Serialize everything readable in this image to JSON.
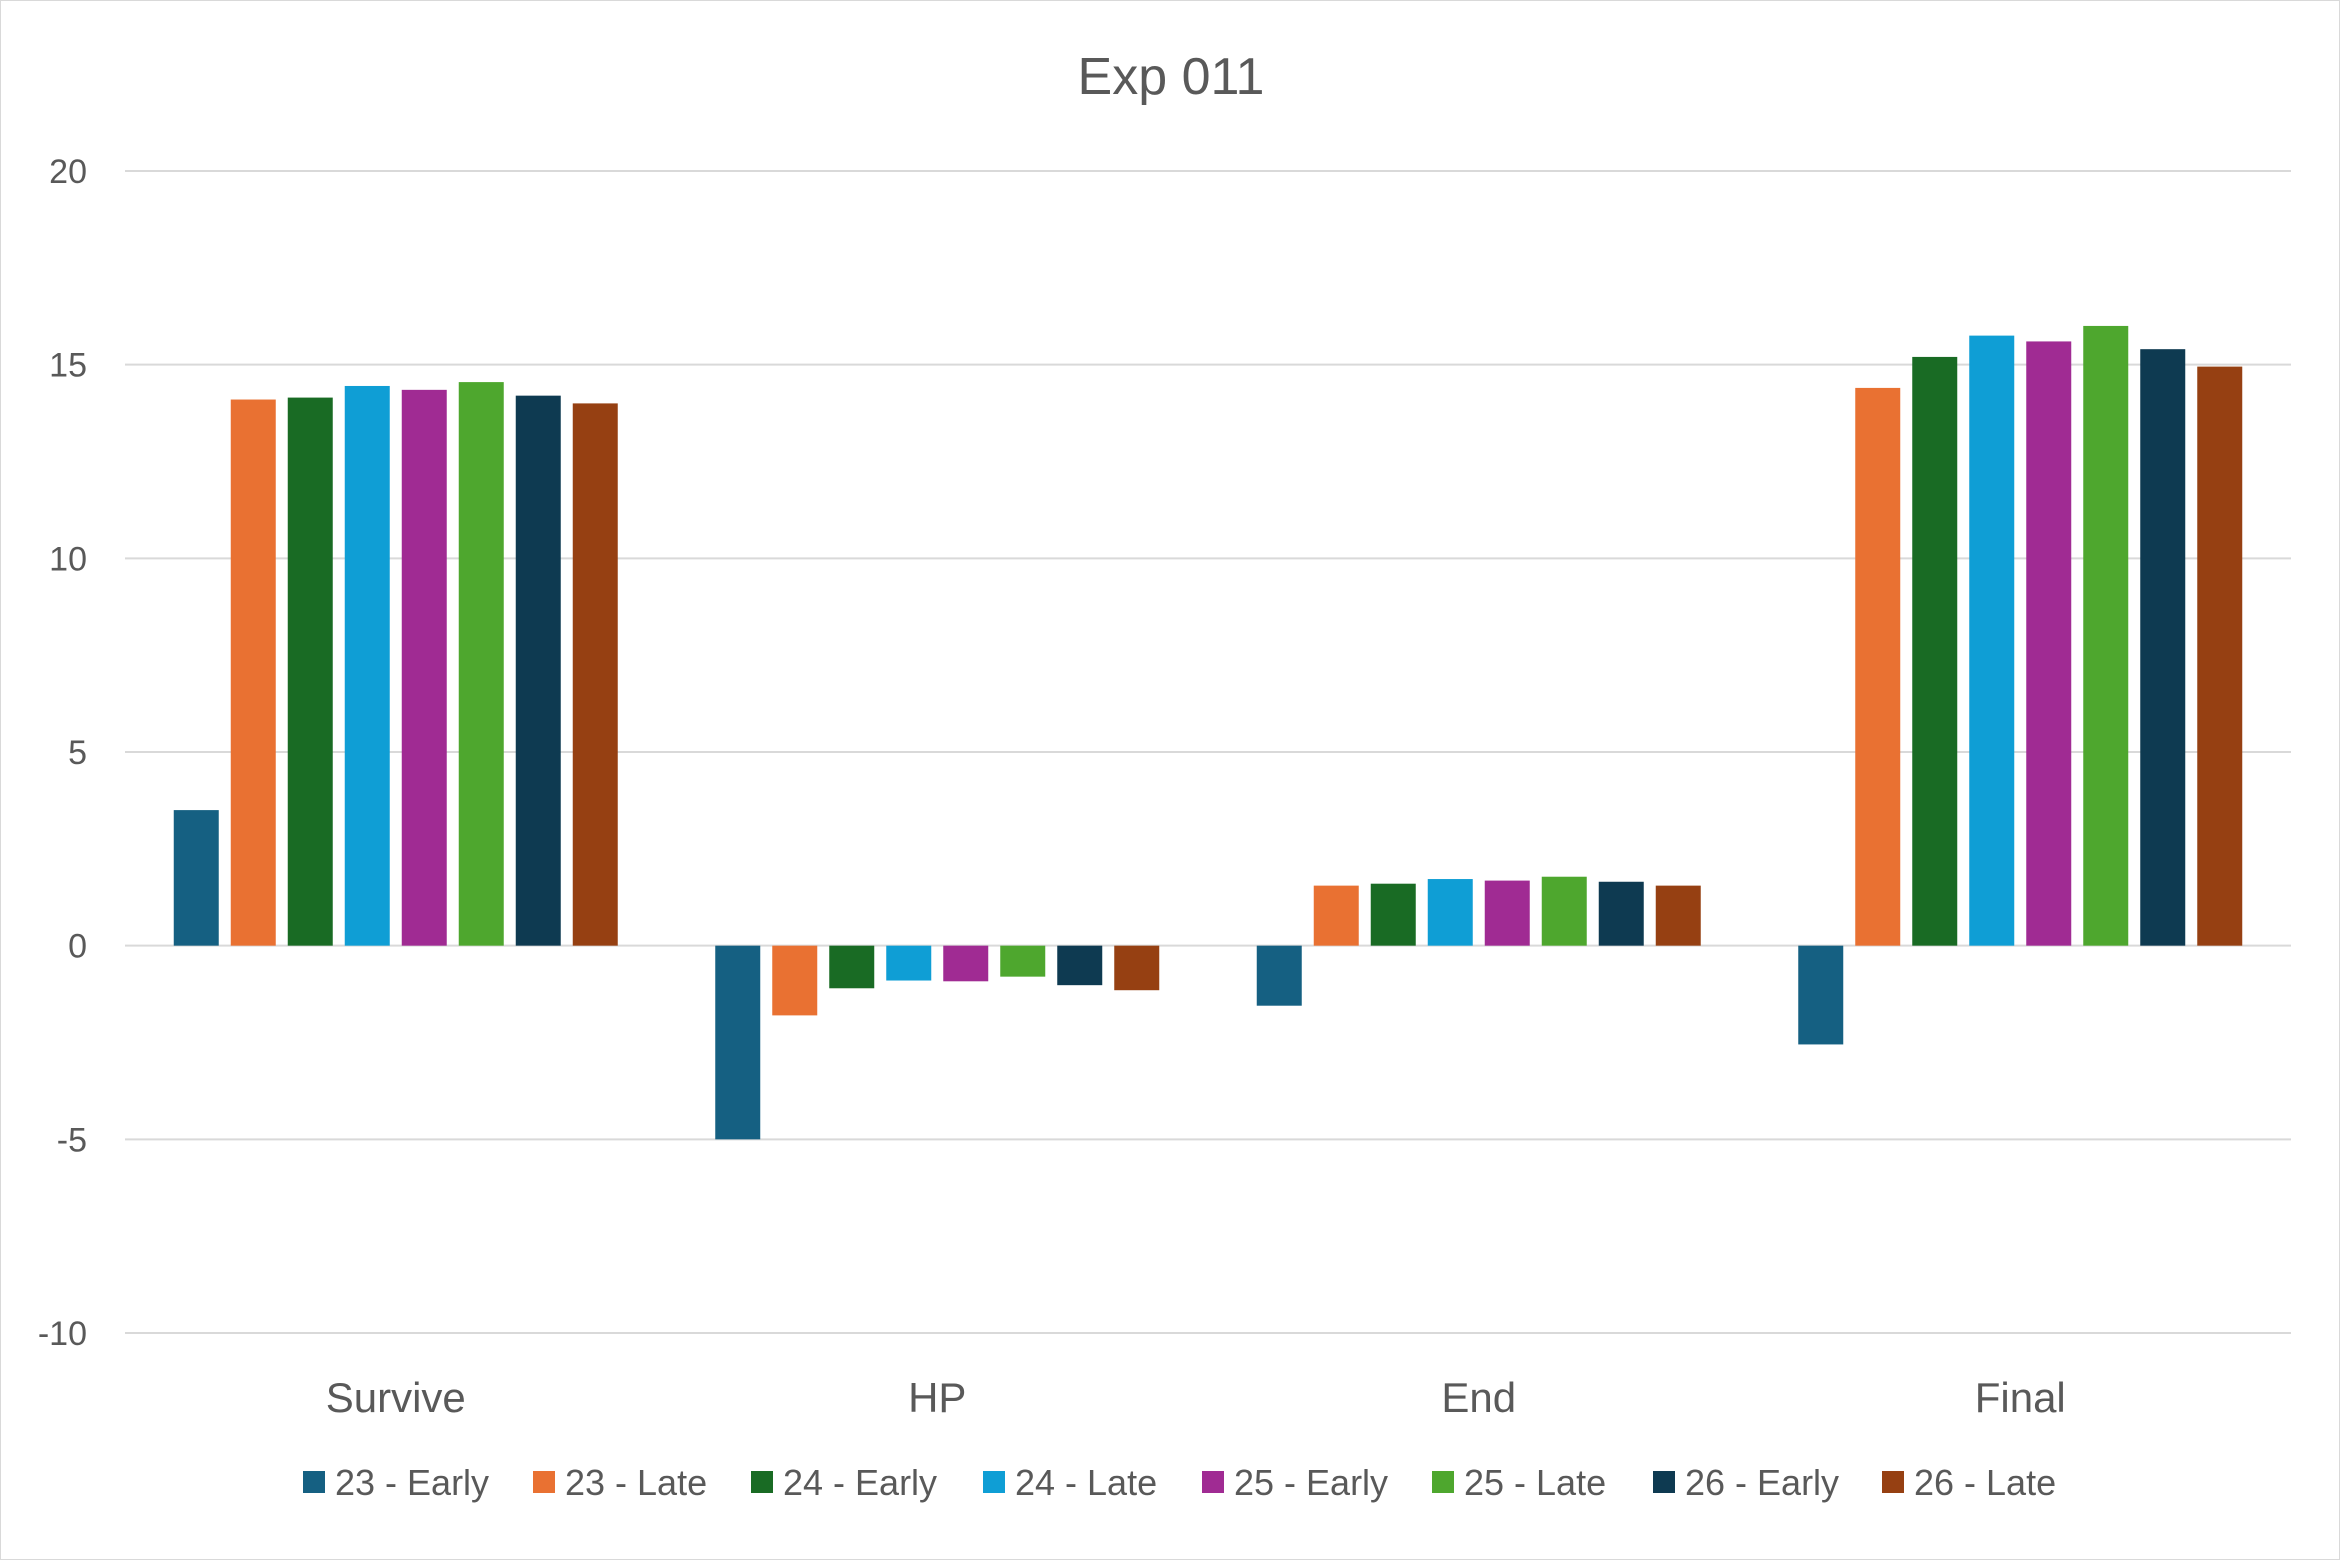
{
  "chart_data": {
    "type": "bar",
    "title": "Exp 011",
    "xlabel": "",
    "ylabel": "",
    "ylim": [
      -10,
      20
    ],
    "yticks": [
      20,
      15,
      10,
      5,
      0,
      -5,
      -10
    ],
    "ytick_labels": [
      "20",
      "15",
      "10",
      "5",
      "0",
      "-5",
      "-10"
    ],
    "grid": true,
    "legend_position": "bottom",
    "categories": [
      "Survive",
      "HP",
      "End",
      "Final"
    ],
    "series": [
      {
        "name": "23 - Early",
        "color": "#156082",
        "values": [
          3.5,
          -5.0,
          -1.55,
          -2.55
        ]
      },
      {
        "name": "23 - Late",
        "color": "#E97132",
        "values": [
          14.1,
          -1.8,
          1.55,
          14.4
        ]
      },
      {
        "name": "24 - Early",
        "color": "#196B24",
        "values": [
          14.15,
          -1.1,
          1.6,
          15.2
        ]
      },
      {
        "name": "24 - Late",
        "color": "#0F9ED5",
        "values": [
          14.45,
          -0.9,
          1.72,
          15.75
        ]
      },
      {
        "name": "25 - Early",
        "color": "#A02B93",
        "values": [
          14.35,
          -0.92,
          1.68,
          15.6
        ]
      },
      {
        "name": "25 - Late",
        "color": "#4EA72E",
        "values": [
          14.55,
          -0.8,
          1.78,
          16.0
        ]
      },
      {
        "name": "26 - Early",
        "color": "#0E3A51",
        "values": [
          14.2,
          -1.02,
          1.65,
          15.4
        ]
      },
      {
        "name": "26 - Late",
        "color": "#964012",
        "values": [
          14.0,
          -1.15,
          1.55,
          14.95
        ]
      }
    ]
  }
}
